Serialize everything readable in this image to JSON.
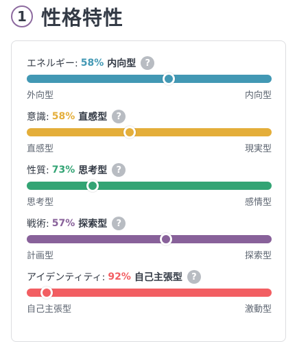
{
  "header": {
    "number": "1",
    "title": "性格特性"
  },
  "help_glyph": "?",
  "traits": [
    {
      "name": "エネルギー:",
      "percent": "58%",
      "type": "内向型",
      "left": "外向型",
      "right": "内向型",
      "color": "#4298b4",
      "position": 0.58
    },
    {
      "name": "意識:",
      "percent": "58%",
      "type": "直感型",
      "left": "直感型",
      "right": "現実型",
      "color": "#e4ae3a",
      "position": 0.42
    },
    {
      "name": "性質:",
      "percent": "73%",
      "type": "思考型",
      "left": "思考型",
      "right": "感情型",
      "color": "#33a474",
      "position": 0.27
    },
    {
      "name": "戦術:",
      "percent": "57%",
      "type": "探索型",
      "left": "計画型",
      "right": "探索型",
      "color": "#88619a",
      "position": 0.57
    },
    {
      "name": "アイデンティティ:",
      "percent": "92%",
      "type": "自己主張型",
      "left": "自己主張型",
      "right": "激動型",
      "color": "#f25e62",
      "position": 0.08
    }
  ]
}
